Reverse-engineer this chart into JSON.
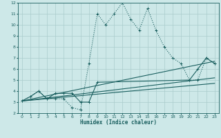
{
  "xlabel": "Humidex (Indice chaleur)",
  "background_color": "#cde8e8",
  "grid_color": "#aacccc",
  "line_color": "#1a5f5f",
  "xlim": [
    -0.5,
    23.5
  ],
  "ylim": [
    2,
    12
  ],
  "xticks": [
    0,
    1,
    2,
    3,
    4,
    5,
    6,
    7,
    8,
    9,
    10,
    11,
    12,
    13,
    14,
    15,
    16,
    17,
    18,
    19,
    20,
    21,
    22,
    23
  ],
  "yticks": [
    2,
    3,
    4,
    5,
    6,
    7,
    8,
    9,
    10,
    11,
    12
  ],
  "series": [
    {
      "x": [
        0,
        1,
        2,
        3,
        4,
        5,
        6,
        7,
        8,
        9,
        10,
        11,
        12,
        13,
        14,
        15,
        16,
        17,
        18,
        19,
        20,
        21,
        22,
        23
      ],
      "y": [
        3.1,
        3.5,
        4.0,
        3.3,
        3.3,
        3.3,
        2.5,
        2.3,
        6.5,
        11.0,
        10.0,
        11.0,
        12.0,
        10.5,
        9.5,
        11.5,
        9.5,
        8.0,
        7.0,
        6.5,
        5.0,
        5.0,
        7.0,
        6.5
      ],
      "style": "dotted",
      "marker": "+"
    },
    {
      "x": [
        0,
        1,
        2,
        3,
        4,
        5,
        6,
        7,
        8,
        9,
        20,
        21,
        22,
        23
      ],
      "y": [
        3.1,
        3.5,
        4.0,
        3.3,
        3.8,
        3.8,
        3.8,
        3.0,
        3.0,
        4.8,
        5.0,
        6.0,
        7.0,
        6.5
      ],
      "style": "solid",
      "marker": "+"
    },
    {
      "x": [
        0,
        23
      ],
      "y": [
        3.1,
        6.7
      ],
      "style": "solid",
      "marker": null
    },
    {
      "x": [
        0,
        23
      ],
      "y": [
        3.1,
        5.2
      ],
      "style": "solid",
      "marker": null
    },
    {
      "x": [
        0,
        23
      ],
      "y": [
        3.1,
        4.7
      ],
      "style": "solid",
      "marker": null
    }
  ]
}
